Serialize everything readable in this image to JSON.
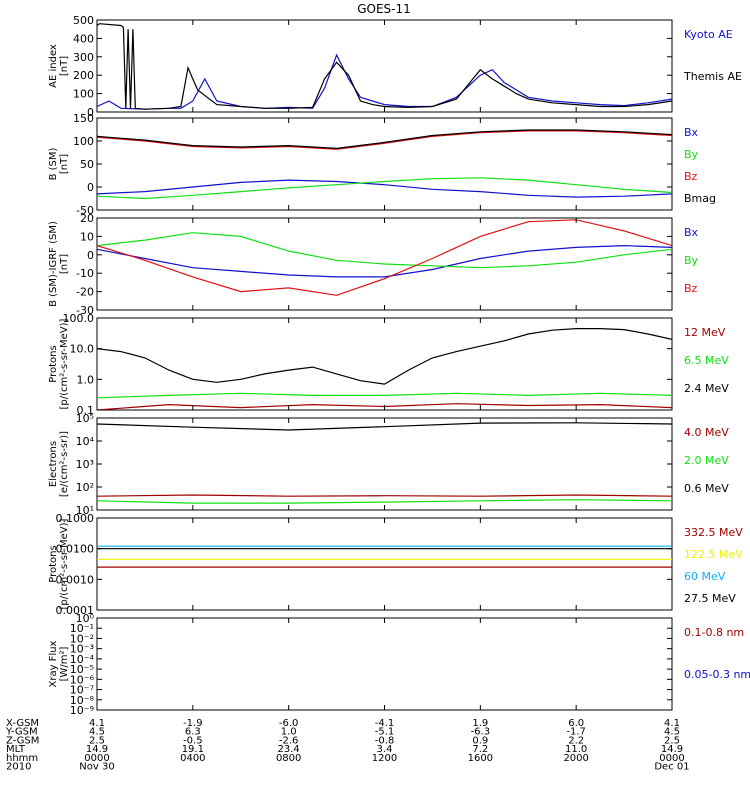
{
  "title": "GOES-11",
  "colors": {
    "black": "#000000",
    "blue": "#1010d0",
    "green": "#10e010",
    "red": "#e01010",
    "darkred": "#a00000",
    "yellow": "#f0f000",
    "cyan": "#10b0f0"
  },
  "x_axis": {
    "ticks": [
      0,
      4,
      8,
      12,
      16,
      20,
      24
    ],
    "rows": [
      {
        "label": "X-GSM",
        "values": [
          "4.1",
          "-1.9",
          "-6.0",
          "-4.1",
          "1.9",
          "6.0",
          "4.1"
        ]
      },
      {
        "label": "Y-GSM",
        "values": [
          "4.5",
          "6.3",
          "1.0",
          "-5.1",
          "-6.3",
          "-1.7",
          "4.5"
        ]
      },
      {
        "label": "Z-GSM",
        "values": [
          "2.5",
          "-0.5",
          "-2.6",
          "-0.8",
          "0.9",
          "2.2",
          "2.5"
        ]
      },
      {
        "label": "MLT",
        "values": [
          "14.9",
          "19.1",
          "23.4",
          "3.4",
          "7.2",
          "11.0",
          "14.9"
        ]
      },
      {
        "label": "hhmm",
        "values": [
          "0000",
          "0400",
          "0800",
          "1200",
          "1600",
          "2000",
          "0000"
        ]
      }
    ],
    "year_label": "2010",
    "start_date": "Nov 30",
    "end_date": "Dec 01"
  },
  "chart_data": [
    {
      "id": "ae",
      "type": "line",
      "ylabel": "AE index\n[nT]",
      "ylim": [
        0,
        500
      ],
      "yticks": [
        "0",
        "100",
        "200",
        "300",
        "400",
        "500"
      ],
      "ytick_values": [
        0,
        100,
        200,
        300,
        400,
        500
      ],
      "log": false,
      "series": [
        {
          "name": "Kyoto AE",
          "color": "blue",
          "x": [
            0,
            0.5,
            1,
            2,
            3,
            3.5,
            4,
            4.5,
            5,
            6,
            7,
            8,
            9,
            9.5,
            10,
            10.5,
            11,
            11.5,
            12,
            13,
            14,
            15,
            15.5,
            16,
            16.5,
            17,
            17.5,
            18,
            19,
            20,
            21,
            22,
            23,
            24
          ],
          "y": [
            30,
            60,
            20,
            15,
            20,
            20,
            60,
            180,
            60,
            30,
            20,
            25,
            20,
            130,
            310,
            180,
            80,
            60,
            40,
            30,
            30,
            80,
            140,
            200,
            230,
            160,
            120,
            80,
            60,
            50,
            40,
            35,
            50,
            70
          ]
        },
        {
          "name": "Themis AE",
          "color": "black",
          "x": [
            0,
            0.1,
            1,
            1.1,
            1.2,
            1.3,
            1.4,
            1.5,
            1.6,
            2,
            3,
            3.5,
            3.8,
            4,
            4.2,
            4.6,
            5,
            6,
            7,
            8,
            9,
            9.5,
            10,
            10.5,
            11,
            11.5,
            12,
            13,
            14,
            15,
            15.5,
            16,
            16.5,
            17,
            17.5,
            18,
            19,
            20,
            21,
            22,
            23,
            24
          ],
          "y": [
            470,
            480,
            470,
            460,
            20,
            450,
            20,
            450,
            20,
            15,
            20,
            30,
            240,
            180,
            120,
            80,
            40,
            30,
            20,
            20,
            25,
            180,
            270,
            200,
            60,
            40,
            30,
            25,
            30,
            70,
            150,
            230,
            180,
            140,
            100,
            70,
            50,
            40,
            30,
            30,
            40,
            60
          ]
        }
      ]
    },
    {
      "id": "bsm",
      "type": "line",
      "ylabel": "B (SM)\n[nT]",
      "ylim": [
        -50,
        150
      ],
      "yticks": [
        "-50",
        "0",
        "50",
        "100",
        "150"
      ],
      "ytick_values": [
        -50,
        0,
        50,
        100,
        150
      ],
      "log": false,
      "series": [
        {
          "name": "Bx",
          "color": "blue",
          "x": [
            0,
            2,
            4,
            6,
            8,
            10,
            12,
            14,
            16,
            18,
            20,
            22,
            24
          ],
          "y": [
            -15,
            -10,
            0,
            10,
            15,
            12,
            5,
            -5,
            -10,
            -18,
            -22,
            -20,
            -15
          ]
        },
        {
          "name": "By",
          "color": "green",
          "x": [
            0,
            2,
            4,
            6,
            8,
            10,
            12,
            14,
            16,
            18,
            20,
            22,
            24
          ],
          "y": [
            -20,
            -25,
            -18,
            -10,
            -2,
            5,
            12,
            18,
            20,
            15,
            5,
            -5,
            -12
          ]
        },
        {
          "name": "Bz",
          "color": "red",
          "x": [
            0,
            2,
            4,
            6,
            8,
            10,
            12,
            14,
            16,
            18,
            20,
            22,
            24
          ],
          "y": [
            108,
            100,
            88,
            85,
            88,
            82,
            95,
            110,
            118,
            122,
            122,
            118,
            112
          ]
        },
        {
          "name": "Bmag",
          "color": "black",
          "x": [
            0,
            2,
            4,
            6,
            8,
            10,
            12,
            14,
            16,
            18,
            20,
            22,
            24
          ],
          "y": [
            110,
            102,
            90,
            87,
            90,
            84,
            97,
            112,
            120,
            124,
            124,
            120,
            114
          ]
        }
      ]
    },
    {
      "id": "bigrf",
      "type": "line",
      "ylabel": "B (SM)-IGRF (SM)\n[nT]",
      "ylim": [
        -30,
        20
      ],
      "yticks": [
        "-30",
        "-20",
        "-10",
        "0",
        "10",
        "20"
      ],
      "ytick_values": [
        -30,
        -20,
        -10,
        0,
        10,
        20
      ],
      "log": false,
      "series": [
        {
          "name": "Bx",
          "color": "blue",
          "x": [
            0,
            2,
            4,
            6,
            8,
            10,
            12,
            14,
            16,
            18,
            20,
            22,
            24
          ],
          "y": [
            3,
            -2,
            -7,
            -9,
            -11,
            -12,
            -12,
            -8,
            -2,
            2,
            4,
            5,
            4
          ]
        },
        {
          "name": "By",
          "color": "green",
          "x": [
            0,
            2,
            4,
            6,
            8,
            10,
            12,
            14,
            16,
            18,
            20,
            22,
            24
          ],
          "y": [
            5,
            8,
            12,
            10,
            2,
            -3,
            -5,
            -6,
            -7,
            -6,
            -4,
            0,
            3
          ]
        },
        {
          "name": "Bz",
          "color": "red",
          "x": [
            0,
            2,
            4,
            6,
            8,
            10,
            12,
            14,
            16,
            18,
            20,
            22,
            24
          ],
          "y": [
            5,
            -3,
            -12,
            -20,
            -18,
            -22,
            -13,
            -2,
            10,
            18,
            19,
            13,
            5
          ]
        }
      ]
    },
    {
      "id": "protons1",
      "type": "line",
      "ylabel": "Protons\n[p/(cm²-s-sr-MeV)]",
      "ylim": [
        0.1,
        100
      ],
      "yticks": [
        "0.1",
        "1.0",
        "10.0",
        "100.0"
      ],
      "ytick_values": [
        0.1,
        1,
        10,
        100
      ],
      "log": true,
      "series": [
        {
          "name": "12 MeV",
          "color": "darkred",
          "x": [
            0,
            3,
            6,
            9,
            12,
            15,
            18,
            21,
            24
          ],
          "y": [
            0.1,
            0.15,
            0.12,
            0.15,
            0.13,
            0.16,
            0.14,
            0.15,
            0.12
          ]
        },
        {
          "name": "6.5 MeV",
          "color": "green",
          "x": [
            0,
            3,
            6,
            9,
            12,
            15,
            18,
            21,
            24
          ],
          "y": [
            0.25,
            0.3,
            0.35,
            0.3,
            0.3,
            0.35,
            0.3,
            0.35,
            0.3
          ]
        },
        {
          "name": "2.4 MeV",
          "color": "black",
          "x": [
            0,
            1,
            2,
            3,
            4,
            5,
            6,
            7,
            8,
            9,
            10,
            11,
            12,
            13,
            14,
            15,
            16,
            17,
            18,
            19,
            20,
            21,
            22,
            23,
            24
          ],
          "y": [
            10,
            8,
            5,
            2,
            1,
            0.8,
            1,
            1.5,
            2,
            2.5,
            1.5,
            0.9,
            0.7,
            2,
            5,
            8,
            12,
            18,
            30,
            40,
            45,
            45,
            42,
            30,
            20
          ]
        }
      ]
    },
    {
      "id": "electrons",
      "type": "line",
      "ylabel": "Electrons\n[e/(cm²-s-sr)]",
      "ylim": [
        10,
        100000
      ],
      "yticks": [
        "10¹",
        "10²",
        "10³",
        "10⁴",
        "10⁵"
      ],
      "ytick_values": [
        10,
        100,
        1000,
        10000,
        100000
      ],
      "log": true,
      "series": [
        {
          "name": "4.0 MeV",
          "color": "darkred",
          "x": [
            0,
            4,
            8,
            12,
            16,
            20,
            24
          ],
          "y": [
            40,
            45,
            40,
            42,
            40,
            45,
            40
          ]
        },
        {
          "name": "2.0 MeV",
          "color": "green",
          "x": [
            0,
            4,
            8,
            12,
            16,
            20,
            24
          ],
          "y": [
            25,
            20,
            20,
            22,
            25,
            28,
            25
          ]
        },
        {
          "name": "0.6 MeV",
          "color": "black",
          "x": [
            0,
            4,
            8,
            12,
            16,
            20,
            24
          ],
          "y": [
            55000,
            40000,
            30000,
            42000,
            60000,
            62000,
            55000
          ]
        }
      ]
    },
    {
      "id": "protons2",
      "type": "line",
      "ylabel": "Protons\n[p/(cm²-s-sr-MeV)]",
      "ylim": [
        0.0001,
        0.1
      ],
      "yticks": [
        "0.0001",
        "0.0010",
        "0.0100",
        "0.1000"
      ],
      "ytick_values": [
        0.0001,
        0.001,
        0.01,
        0.1
      ],
      "log": true,
      "series": [
        {
          "name": "332.5 MeV",
          "color": "darkred",
          "x": [
            0,
            6,
            12,
            18,
            24
          ],
          "y": [
            0.0025,
            0.0025,
            0.0025,
            0.0025,
            0.0025
          ]
        },
        {
          "name": "122.5 MeV",
          "color": "yellow",
          "x": [
            0,
            6,
            12,
            18,
            24
          ],
          "y": [
            0.0045,
            0.0045,
            0.0045,
            0.0045,
            0.0045
          ]
        },
        {
          "name": "60 MeV",
          "color": "cyan",
          "x": [
            0,
            6,
            12,
            18,
            24
          ],
          "y": [
            0.012,
            0.012,
            0.012,
            0.012,
            0.012
          ]
        },
        {
          "name": "27.5 MeV",
          "color": "black",
          "x": [
            0,
            6,
            12,
            18,
            24
          ],
          "y": [
            0.01,
            0.01,
            0.01,
            0.01,
            0.01
          ]
        }
      ]
    },
    {
      "id": "xray",
      "type": "line",
      "ylabel": "Xray Flux\n[W/m²]",
      "ylim": [
        1e-09,
        1
      ],
      "yticks": [
        "10⁻⁹",
        "10⁻⁸",
        "10⁻⁷",
        "10⁻⁶",
        "10⁻⁵",
        "10⁻⁴",
        "10⁻³",
        "10⁻²",
        "10⁻¹",
        "10⁰"
      ],
      "ytick_values": [
        1e-09,
        1e-08,
        1e-07,
        1e-06,
        1e-05,
        0.0001,
        0.001,
        0.01,
        0.1,
        1
      ],
      "log": true,
      "series": [
        {
          "name": "0.1-0.8 nm",
          "color": "darkred",
          "x": [],
          "y": []
        },
        {
          "name": "0.05-0.3 nm",
          "color": "blue",
          "x": [],
          "y": []
        }
      ]
    }
  ]
}
